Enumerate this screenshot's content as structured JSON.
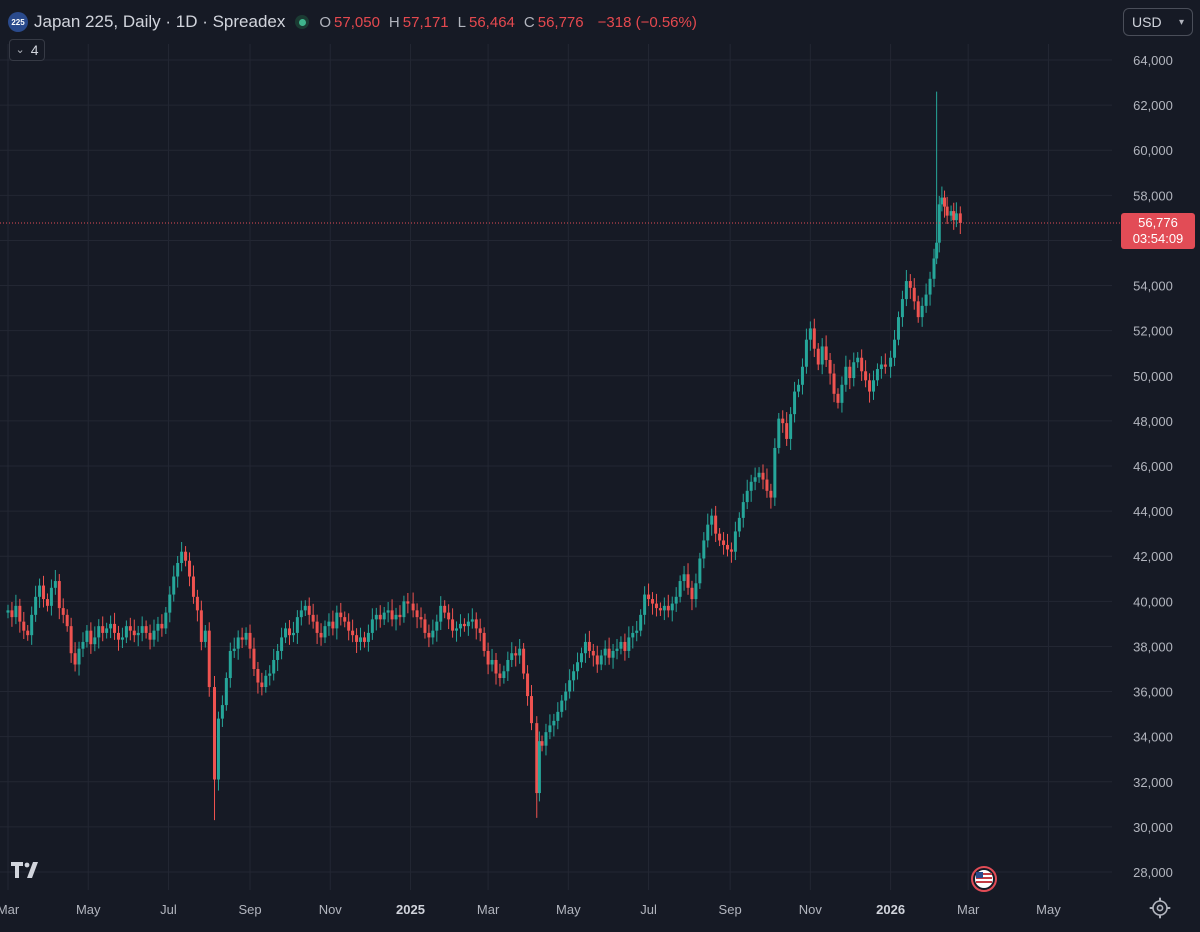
{
  "legend": {
    "symbol_badge": "225",
    "title": "Japan 225, Daily · 1D · Spreadex",
    "open_key": "O",
    "open": "57,050",
    "high_key": "H",
    "high": "57,171",
    "low_key": "L",
    "low": "56,464",
    "close_key": "C",
    "close": "56,776",
    "change": "−318 (−0.56%)"
  },
  "indicator_toggle": {
    "count": "4",
    "icon": "chevron-down-icon"
  },
  "currency": {
    "label": "USD",
    "icon": "chevron-down-icon"
  },
  "price_tag": {
    "price": "56,776",
    "countdown": "03:54:09"
  },
  "colors": {
    "background": "#161a25",
    "grid": "#232733",
    "up": "#26a69a",
    "down": "#ef5350",
    "axis_text": "#b2b5be",
    "price_line": "#e24c56"
  },
  "chart_data": {
    "type": "candlestick",
    "y_ticks": [
      "64,000",
      "62,000",
      "60,000",
      "58,000",
      "56,000",
      "54,000",
      "52,000",
      "50,000",
      "48,000",
      "46,000",
      "44,000",
      "42,000",
      "40,000",
      "38,000",
      "36,000",
      "34,000",
      "32,000",
      "30,000",
      "28,000"
    ],
    "y_tick_values": [
      64000,
      62000,
      60000,
      58000,
      56000,
      54000,
      52000,
      50000,
      48000,
      46000,
      44000,
      42000,
      40000,
      38000,
      36000,
      34000,
      32000,
      30000,
      28000
    ],
    "ylim": [
      27500,
      65000
    ],
    "x_ticks": [
      {
        "label": "Mar",
        "date": "2024-03-01",
        "bold": false
      },
      {
        "label": "May",
        "date": "2024-05-01",
        "bold": false
      },
      {
        "label": "Jul",
        "date": "2024-07-01",
        "bold": false
      },
      {
        "label": "Sep",
        "date": "2024-09-01",
        "bold": false
      },
      {
        "label": "Nov",
        "date": "2024-11-01",
        "bold": false
      },
      {
        "label": "2025",
        "date": "2025-01-01",
        "bold": true
      },
      {
        "label": "Mar",
        "date": "2025-03-01",
        "bold": false
      },
      {
        "label": "May",
        "date": "2025-05-01",
        "bold": false
      },
      {
        "label": "Jul",
        "date": "2025-07-01",
        "bold": false
      },
      {
        "label": "Sep",
        "date": "2025-09-01",
        "bold": false
      },
      {
        "label": "Nov",
        "date": "2025-11-01",
        "bold": false
      },
      {
        "label": "2026",
        "date": "2026-01-01",
        "bold": true
      },
      {
        "label": "Mar",
        "date": "2026-03-01",
        "bold": false
      },
      {
        "label": "May",
        "date": "2026-05-01",
        "bold": false
      }
    ],
    "xlim": [
      "2024-03-01",
      "2026-05-25"
    ],
    "grid": true,
    "last_price": 56776,
    "closes": [
      [
        "2024-03-01",
        39600
      ],
      [
        "2024-03-04",
        39300
      ],
      [
        "2024-03-07",
        39800
      ],
      [
        "2024-03-10",
        39100
      ],
      [
        "2024-03-13",
        38700
      ],
      [
        "2024-03-16",
        38500
      ],
      [
        "2024-03-19",
        39400
      ],
      [
        "2024-03-22",
        40200
      ],
      [
        "2024-03-25",
        40700
      ],
      [
        "2024-03-28",
        40100
      ],
      [
        "2024-03-31",
        39800
      ],
      [
        "2024-04-03",
        40600
      ],
      [
        "2024-04-06",
        40900
      ],
      [
        "2024-04-09",
        39700
      ],
      [
        "2024-04-12",
        39400
      ],
      [
        "2024-04-15",
        38900
      ],
      [
        "2024-04-18",
        37700
      ],
      [
        "2024-04-21",
        37200
      ],
      [
        "2024-04-24",
        37900
      ],
      [
        "2024-04-27",
        38200
      ],
      [
        "2024-04-30",
        38700
      ],
      [
        "2024-05-03",
        38100
      ],
      [
        "2024-05-06",
        38400
      ],
      [
        "2024-05-09",
        38900
      ],
      [
        "2024-05-12",
        38600
      ],
      [
        "2024-05-15",
        38800
      ],
      [
        "2024-05-18",
        39000
      ],
      [
        "2024-05-21",
        38600
      ],
      [
        "2024-05-24",
        38300
      ],
      [
        "2024-05-27",
        38400
      ],
      [
        "2024-05-30",
        38900
      ],
      [
        "2024-06-02",
        38700
      ],
      [
        "2024-06-05",
        38500
      ],
      [
        "2024-06-08",
        38600
      ],
      [
        "2024-06-11",
        38900
      ],
      [
        "2024-06-14",
        38600
      ],
      [
        "2024-06-17",
        38300
      ],
      [
        "2024-06-20",
        38700
      ],
      [
        "2024-06-23",
        39000
      ],
      [
        "2024-06-26",
        38800
      ],
      [
        "2024-06-29",
        39500
      ],
      [
        "2024-07-02",
        40300
      ],
      [
        "2024-07-05",
        41100
      ],
      [
        "2024-07-08",
        41700
      ],
      [
        "2024-07-11",
        42200
      ],
      [
        "2024-07-14",
        41800
      ],
      [
        "2024-07-17",
        41100
      ],
      [
        "2024-07-20",
        40200
      ],
      [
        "2024-07-23",
        39600
      ],
      [
        "2024-07-26",
        38200
      ],
      [
        "2024-07-29",
        38700
      ],
      [
        "2024-08-01",
        36200
      ],
      [
        "2024-08-05",
        32100
      ],
      [
        "2024-08-08",
        34800
      ],
      [
        "2024-08-11",
        35400
      ],
      [
        "2024-08-14",
        36600
      ],
      [
        "2024-08-17",
        37800
      ],
      [
        "2024-08-20",
        37900
      ],
      [
        "2024-08-23",
        38400
      ],
      [
        "2024-08-26",
        38300
      ],
      [
        "2024-08-29",
        38600
      ],
      [
        "2024-09-01",
        37900
      ],
      [
        "2024-09-04",
        37000
      ],
      [
        "2024-09-07",
        36400
      ],
      [
        "2024-09-10",
        36200
      ],
      [
        "2024-09-13",
        36700
      ],
      [
        "2024-09-16",
        36800
      ],
      [
        "2024-09-19",
        37400
      ],
      [
        "2024-09-22",
        37800
      ],
      [
        "2024-09-25",
        38400
      ],
      [
        "2024-09-28",
        38800
      ],
      [
        "2024-10-01",
        38500
      ],
      [
        "2024-10-04",
        38600
      ],
      [
        "2024-10-07",
        39300
      ],
      [
        "2024-10-10",
        39600
      ],
      [
        "2024-10-13",
        39800
      ],
      [
        "2024-10-16",
        39400
      ],
      [
        "2024-10-19",
        39100
      ],
      [
        "2024-10-22",
        38600
      ],
      [
        "2024-10-25",
        38400
      ],
      [
        "2024-10-28",
        38900
      ],
      [
        "2024-10-31",
        39100
      ],
      [
        "2024-11-03",
        38800
      ],
      [
        "2024-11-06",
        39500
      ],
      [
        "2024-11-09",
        39300
      ],
      [
        "2024-11-12",
        39100
      ],
      [
        "2024-11-15",
        38700
      ],
      [
        "2024-11-18",
        38500
      ],
      [
        "2024-11-21",
        38200
      ],
      [
        "2024-11-24",
        38400
      ],
      [
        "2024-11-27",
        38200
      ],
      [
        "2024-11-30",
        38600
      ],
      [
        "2024-12-03",
        39200
      ],
      [
        "2024-12-06",
        39400
      ],
      [
        "2024-12-09",
        39200
      ],
      [
        "2024-12-12",
        39500
      ],
      [
        "2024-12-15",
        39600
      ],
      [
        "2024-12-18",
        39200
      ],
      [
        "2024-12-21",
        39400
      ],
      [
        "2024-12-24",
        39300
      ],
      [
        "2024-12-27",
        40000
      ],
      [
        "2024-12-30",
        39900
      ],
      [
        "2025-01-03",
        39600
      ],
      [
        "2025-01-06",
        39300
      ],
      [
        "2025-01-09",
        39200
      ],
      [
        "2025-01-12",
        38600
      ],
      [
        "2025-01-15",
        38400
      ],
      [
        "2025-01-18",
        38700
      ],
      [
        "2025-01-21",
        39100
      ],
      [
        "2025-01-24",
        39800
      ],
      [
        "2025-01-27",
        39500
      ],
      [
        "2025-01-30",
        39200
      ],
      [
        "2025-02-02",
        38700
      ],
      [
        "2025-02-05",
        38800
      ],
      [
        "2025-02-08",
        39000
      ],
      [
        "2025-02-11",
        38900
      ],
      [
        "2025-02-14",
        39100
      ],
      [
        "2025-02-17",
        39200
      ],
      [
        "2025-02-20",
        38800
      ],
      [
        "2025-02-23",
        38600
      ],
      [
        "2025-02-26",
        37800
      ],
      [
        "2025-03-01",
        37200
      ],
      [
        "2025-03-04",
        37400
      ],
      [
        "2025-03-07",
        36800
      ],
      [
        "2025-03-10",
        36600
      ],
      [
        "2025-03-13",
        36900
      ],
      [
        "2025-03-16",
        37400
      ],
      [
        "2025-03-19",
        37700
      ],
      [
        "2025-03-22",
        37600
      ],
      [
        "2025-03-25",
        37900
      ],
      [
        "2025-03-28",
        36800
      ],
      [
        "2025-03-31",
        35800
      ],
      [
        "2025-04-03",
        34600
      ],
      [
        "2025-04-07",
        31500
      ],
      [
        "2025-04-09",
        33800
      ],
      [
        "2025-04-11",
        33600
      ],
      [
        "2025-04-14",
        34200
      ],
      [
        "2025-04-17",
        34500
      ],
      [
        "2025-04-20",
        34700
      ],
      [
        "2025-04-23",
        35100
      ],
      [
        "2025-04-26",
        35600
      ],
      [
        "2025-04-29",
        36000
      ],
      [
        "2025-05-02",
        36500
      ],
      [
        "2025-05-05",
        36900
      ],
      [
        "2025-05-08",
        37300
      ],
      [
        "2025-05-11",
        37700
      ],
      [
        "2025-05-14",
        38200
      ],
      [
        "2025-05-17",
        37800
      ],
      [
        "2025-05-20",
        37600
      ],
      [
        "2025-05-23",
        37200
      ],
      [
        "2025-05-26",
        37600
      ],
      [
        "2025-05-29",
        37900
      ],
      [
        "2025-06-01",
        37500
      ],
      [
        "2025-06-04",
        37800
      ],
      [
        "2025-06-07",
        37900
      ],
      [
        "2025-06-10",
        38200
      ],
      [
        "2025-06-13",
        37800
      ],
      [
        "2025-06-16",
        38400
      ],
      [
        "2025-06-19",
        38600
      ],
      [
        "2025-06-22",
        38700
      ],
      [
        "2025-06-25",
        39400
      ],
      [
        "2025-06-28",
        40300
      ],
      [
        "2025-07-01",
        40100
      ],
      [
        "2025-07-04",
        39900
      ],
      [
        "2025-07-07",
        39700
      ],
      [
        "2025-07-10",
        39600
      ],
      [
        "2025-07-13",
        39800
      ],
      [
        "2025-07-16",
        39600
      ],
      [
        "2025-07-19",
        39900
      ],
      [
        "2025-07-22",
        40200
      ],
      [
        "2025-07-25",
        40900
      ],
      [
        "2025-07-28",
        41200
      ],
      [
        "2025-07-31",
        40600
      ],
      [
        "2025-08-03",
        40100
      ],
      [
        "2025-08-06",
        40800
      ],
      [
        "2025-08-09",
        41900
      ],
      [
        "2025-08-12",
        42700
      ],
      [
        "2025-08-15",
        43400
      ],
      [
        "2025-08-18",
        43800
      ],
      [
        "2025-08-21",
        43000
      ],
      [
        "2025-08-24",
        42700
      ],
      [
        "2025-08-27",
        42500
      ],
      [
        "2025-08-30",
        42300
      ],
      [
        "2025-09-02",
        42200
      ],
      [
        "2025-09-05",
        43100
      ],
      [
        "2025-09-08",
        43700
      ],
      [
        "2025-09-11",
        44400
      ],
      [
        "2025-09-14",
        44900
      ],
      [
        "2025-09-17",
        45300
      ],
      [
        "2025-09-20",
        45500
      ],
      [
        "2025-09-23",
        45700
      ],
      [
        "2025-09-26",
        45400
      ],
      [
        "2025-09-29",
        44900
      ],
      [
        "2025-10-02",
        44600
      ],
      [
        "2025-10-05",
        46800
      ],
      [
        "2025-10-08",
        48100
      ],
      [
        "2025-10-11",
        47900
      ],
      [
        "2025-10-14",
        47200
      ],
      [
        "2025-10-17",
        48300
      ],
      [
        "2025-10-20",
        49300
      ],
      [
        "2025-10-23",
        49600
      ],
      [
        "2025-10-26",
        50400
      ],
      [
        "2025-10-29",
        51600
      ],
      [
        "2025-11-01",
        52100
      ],
      [
        "2025-11-04",
        51200
      ],
      [
        "2025-11-07",
        50500
      ],
      [
        "2025-11-10",
        51300
      ],
      [
        "2025-11-13",
        50700
      ],
      [
        "2025-11-16",
        50100
      ],
      [
        "2025-11-19",
        49200
      ],
      [
        "2025-11-22",
        48800
      ],
      [
        "2025-11-25",
        49600
      ],
      [
        "2025-11-28",
        50400
      ],
      [
        "2025-12-01",
        49900
      ],
      [
        "2025-12-04",
        50600
      ],
      [
        "2025-12-07",
        50800
      ],
      [
        "2025-12-10",
        50200
      ],
      [
        "2025-12-13",
        49800
      ],
      [
        "2025-12-16",
        49300
      ],
      [
        "2025-12-19",
        49800
      ],
      [
        "2025-12-22",
        50300
      ],
      [
        "2025-12-25",
        50500
      ],
      [
        "2025-12-28",
        50400
      ],
      [
        "2026-01-01",
        50800
      ],
      [
        "2026-01-04",
        51600
      ],
      [
        "2026-01-07",
        52600
      ],
      [
        "2026-01-10",
        53400
      ],
      [
        "2026-01-13",
        54200
      ],
      [
        "2026-01-16",
        53900
      ],
      [
        "2026-01-19",
        53300
      ],
      [
        "2026-01-22",
        52600
      ],
      [
        "2026-01-25",
        53100
      ],
      [
        "2026-01-28",
        53600
      ],
      [
        "2026-01-31",
        54300
      ],
      [
        "2026-02-03",
        55200
      ],
      [
        "2026-02-05",
        55900
      ],
      [
        "2026-02-07",
        57600
      ],
      [
        "2026-02-09",
        57900
      ],
      [
        "2026-02-11",
        57500
      ],
      [
        "2026-02-13",
        57100
      ],
      [
        "2026-02-16",
        57300
      ],
      [
        "2026-02-18",
        56900
      ],
      [
        "2026-02-20",
        57200
      ],
      [
        "2026-02-23",
        56776
      ]
    ],
    "spikes": [
      {
        "date": "2024-08-05",
        "low": 30300
      },
      {
        "date": "2025-04-07",
        "low": 30400
      },
      {
        "date": "2026-02-05",
        "high": 62600
      }
    ]
  }
}
